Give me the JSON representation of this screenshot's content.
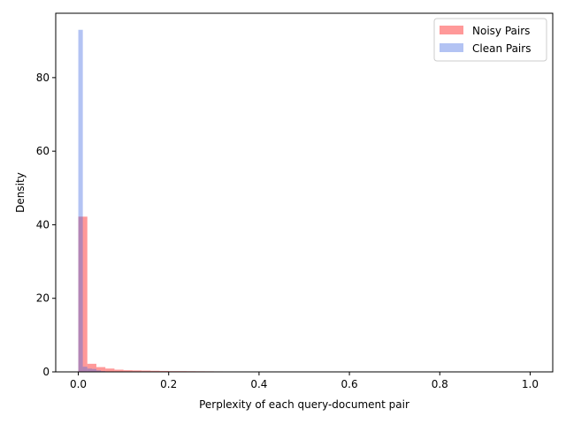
{
  "chart_data": {
    "type": "histogram",
    "title": "",
    "xlabel": "Perplexity of each query-document pair",
    "ylabel": "Density",
    "xlim": [
      -0.05,
      1.05
    ],
    "ylim": [
      0,
      97.5
    ],
    "x_ticks": [
      0.0,
      0.2,
      0.4,
      0.6,
      0.8,
      1.0
    ],
    "x_tick_labels": [
      "0.0",
      "0.2",
      "0.4",
      "0.6",
      "0.8",
      "1.0"
    ],
    "y_ticks": [
      0,
      20,
      40,
      60,
      80
    ],
    "y_tick_labels": [
      "0",
      "20",
      "40",
      "60",
      "80"
    ],
    "grid": false,
    "legend": "top-right",
    "series": [
      {
        "name": "Noisy Pairs",
        "color": "#ff0000",
        "alpha": 0.4,
        "bin_edges": [
          0.0,
          0.02,
          0.04,
          0.06,
          0.08,
          0.1,
          0.12,
          0.14,
          0.16,
          0.18,
          0.2,
          0.22,
          0.24,
          0.26,
          0.28,
          0.3,
          0.32,
          0.34,
          0.36,
          0.38,
          0.4
        ],
        "values": [
          42.2,
          2.2,
          1.3,
          0.9,
          0.6,
          0.45,
          0.4,
          0.35,
          0.3,
          0.25,
          0.2,
          0.2,
          0.18,
          0.16,
          0.15,
          0.13,
          0.12,
          0.1,
          0.08,
          0.05
        ]
      },
      {
        "name": "Clean Pairs",
        "color": "#4169e1",
        "alpha": 0.4,
        "bin_edges": [
          0.0,
          0.01,
          0.02,
          0.03,
          0.04,
          0.05,
          0.06
        ],
        "values": [
          93.0,
          1.4,
          0.9,
          0.8,
          0.4,
          0.2
        ]
      }
    ]
  }
}
